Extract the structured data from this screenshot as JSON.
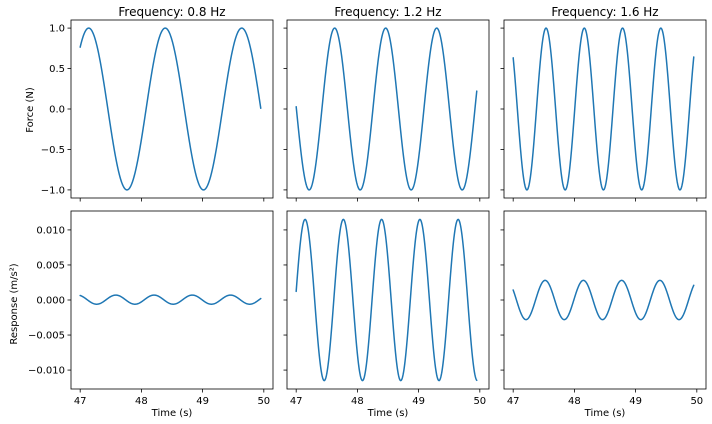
{
  "figure": {
    "line_color": "#1f77b4",
    "columns": [
      {
        "title": "Frequency: 0.8 Hz"
      },
      {
        "title": "Frequency: 1.2 Hz"
      },
      {
        "title": "Frequency: 1.6 Hz"
      }
    ],
    "rows": [
      {
        "ylabel": "Force (N)"
      },
      {
        "ylabel": "Response (m/s²)"
      }
    ],
    "xlabel": "Time (s)"
  },
  "chart_data": [
    {
      "type": "line",
      "row": 0,
      "col": 0,
      "title": "Frequency: 0.8 Hz",
      "xlabel": "",
      "ylabel": "Force (N)",
      "xlim": [
        46.85,
        50.15
      ],
      "ylim": [
        -1.1,
        1.1
      ],
      "xticks": [
        47,
        48,
        49,
        50
      ],
      "yticks": [
        1.0,
        0.5,
        0.0,
        -0.5,
        -1.0
      ],
      "yticklabels": [
        "1.0",
        "0.5",
        "0.0",
        "−0.5",
        "−1.0"
      ],
      "series": [
        {
          "function": "sine",
          "t_start": 47,
          "t_end": 49.95,
          "frequency_hz": 0.8,
          "amplitude": 1.0,
          "phase_rad": -2.9
        }
      ]
    },
    {
      "type": "line",
      "row": 0,
      "col": 1,
      "title": "Frequency: 1.2 Hz",
      "xlabel": "",
      "ylabel": "",
      "xlim": [
        46.85,
        50.15
      ],
      "ylim": [
        -1.1,
        1.1
      ],
      "xticks": [
        47,
        48,
        49,
        50
      ],
      "yticks": [
        1.0,
        0.5,
        0.0,
        -0.5,
        -1.0
      ],
      "series": [
        {
          "function": "sine",
          "t_start": 47,
          "t_end": 49.95,
          "frequency_hz": 1.2,
          "amplitude": 1.0,
          "phase_rad": 0.6
        }
      ]
    },
    {
      "type": "line",
      "row": 0,
      "col": 2,
      "title": "Frequency: 1.6 Hz",
      "xlabel": "",
      "ylabel": "",
      "xlim": [
        46.85,
        50.15
      ],
      "ylim": [
        -1.1,
        1.1
      ],
      "xticks": [
        47,
        48,
        49,
        50
      ],
      "yticks": [
        1.0,
        0.5,
        0.0,
        -0.5,
        -1.0
      ],
      "series": [
        {
          "function": "sine",
          "t_start": 47,
          "t_end": 49.95,
          "frequency_hz": 1.6,
          "amplitude": 1.0,
          "phase_rad": 1.2
        }
      ]
    },
    {
      "type": "line",
      "row": 1,
      "col": 0,
      "title": "",
      "xlabel": "Time (s)",
      "ylabel": "Response (m/s²)",
      "xlim": [
        46.85,
        50.15
      ],
      "ylim": [
        -0.0127,
        0.0127
      ],
      "xticks": [
        47,
        48,
        49,
        50
      ],
      "xticklabels": [
        "47",
        "48",
        "49",
        "50"
      ],
      "yticks": [
        0.01,
        0.005,
        0.0,
        -0.005,
        -0.01
      ],
      "yticklabels": [
        "0.010",
        "0.005",
        "0.000",
        "−0.005",
        "−0.010"
      ],
      "series": [
        {
          "function": "sine",
          "t_start": 47,
          "t_end": 49.95,
          "frequency_hz": 1.6,
          "amplitude": 0.00065,
          "phase_rad": 0.75,
          "offset": 5e-05
        }
      ]
    },
    {
      "type": "line",
      "row": 1,
      "col": 1,
      "title": "",
      "xlabel": "Time (s)",
      "ylabel": "",
      "xlim": [
        46.85,
        50.15
      ],
      "ylim": [
        -0.0127,
        0.0127
      ],
      "xticks": [
        47,
        48,
        49,
        50
      ],
      "xticklabels": [
        "47",
        "48",
        "49",
        "50"
      ],
      "yticks": [
        0.01,
        0.005,
        0.0,
        -0.005,
        -0.01
      ],
      "series": [
        {
          "function": "sine",
          "t_start": 47,
          "t_end": 49.95,
          "frequency_hz": 1.6,
          "amplitude": 0.0115,
          "phase_rad": -1.15
        }
      ]
    },
    {
      "type": "line",
      "row": 1,
      "col": 2,
      "title": "",
      "xlabel": "Time (s)",
      "ylabel": "",
      "xlim": [
        46.85,
        50.15
      ],
      "ylim": [
        -0.0127,
        0.0127
      ],
      "xticks": [
        47,
        48,
        49,
        50
      ],
      "xticklabels": [
        "47",
        "48",
        "49",
        "50"
      ],
      "yticks": [
        0.01,
        0.005,
        0.0,
        -0.005,
        -0.01
      ],
      "series": [
        {
          "function": "sine",
          "t_start": 47,
          "t_end": 49.95,
          "frequency_hz": 1.6,
          "amplitude": 0.0028,
          "phase_rad": 1.35
        }
      ]
    }
  ]
}
